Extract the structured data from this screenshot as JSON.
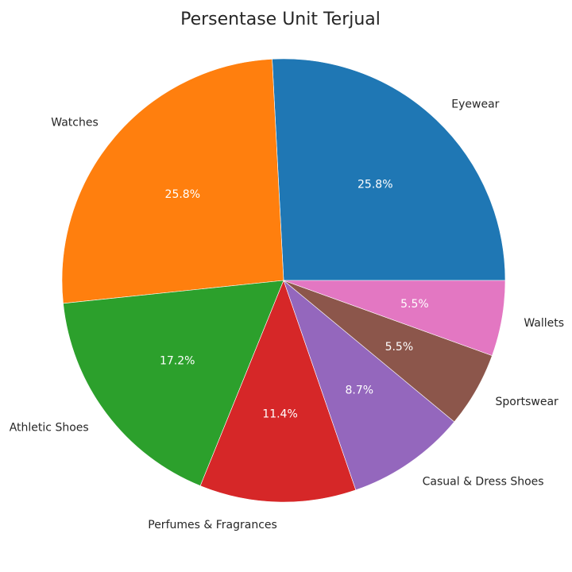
{
  "chart_data": {
    "type": "pie",
    "title": "Persentase Unit Terjual",
    "start_angle_deg": 0,
    "direction": "counterclockwise",
    "categories": [
      "Eyewear",
      "Watches",
      "Athletic Shoes",
      "Perfumes & Fragrances",
      "Casual & Dress Shoes",
      "Sportswear",
      "Wallets"
    ],
    "values": [
      25.8,
      25.8,
      17.2,
      11.4,
      8.7,
      5.5,
      5.5
    ],
    "value_labels": [
      "25.8%",
      "25.8%",
      "17.2%",
      "11.4%",
      "8.7%",
      "5.5%",
      "5.5%"
    ],
    "colors": [
      "#1f77b4",
      "#ff7f0e",
      "#2ca02c",
      "#d62728",
      "#9467bd",
      "#8c564b",
      "#e377c2"
    ],
    "legend": "none"
  }
}
